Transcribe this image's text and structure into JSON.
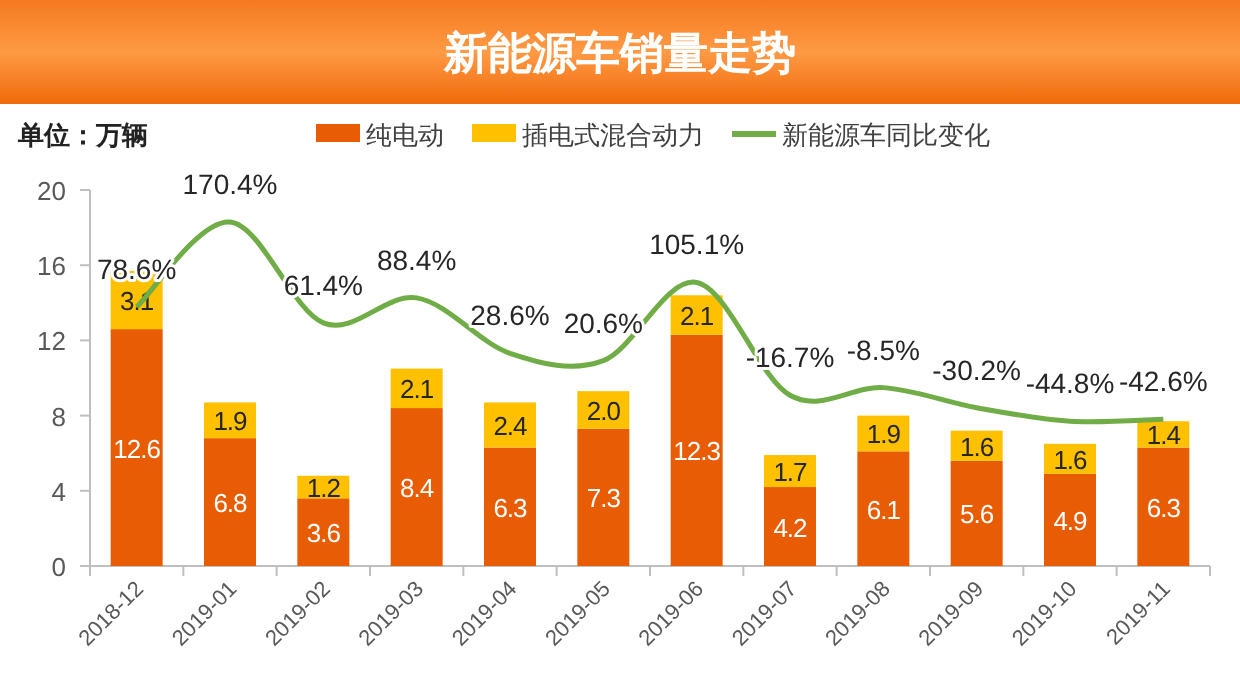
{
  "chart_data": {
    "type": "bar",
    "title": "新能源车销量走势",
    "ylabel": "单位：万辆",
    "stacked": true,
    "categories": [
      "2018-12",
      "2019-01",
      "2019-02",
      "2019-03",
      "2019-04",
      "2019-05",
      "2019-06",
      "2019-07",
      "2019-08",
      "2019-09",
      "2019-10",
      "2019-11"
    ],
    "ylim": [
      0,
      20
    ],
    "yticks": [
      0,
      4,
      8,
      12,
      16,
      20
    ],
    "grid": false,
    "legend": "top",
    "series": [
      {
        "name": "纯电动",
        "color": "#e85d04",
        "values": [
          12.6,
          6.8,
          3.6,
          8.4,
          6.3,
          7.3,
          12.3,
          4.2,
          6.1,
          5.6,
          4.9,
          6.3
        ],
        "value_labels": [
          "12.6",
          "6.8",
          "3.6",
          "8.4",
          "6.3",
          "7.3",
          "12.3",
          "4.2",
          "6.1",
          "5.6",
          "4.9",
          "6.3"
        ]
      },
      {
        "name": "插电式混合动力",
        "color": "#ffc000",
        "values": [
          3.1,
          1.9,
          1.2,
          2.1,
          2.4,
          2.0,
          2.1,
          1.7,
          1.9,
          1.6,
          1.6,
          1.4
        ],
        "value_labels": [
          "3.1",
          "1.9",
          "1.2",
          "2.1",
          "2.4",
          "2.0",
          "2.1",
          "1.7",
          "1.9",
          "1.6",
          "1.6",
          "1.4"
        ]
      },
      {
        "name": "新能源车同比变化",
        "type": "line",
        "axis": "y2",
        "color": "#70ad47",
        "values": [
          78.6,
          170.4,
          61.4,
          88.4,
          28.6,
          20.6,
          105.1,
          -16.7,
          -8.5,
          -30.2,
          -44.8,
          -42.6
        ],
        "value_labels": [
          "78.6%",
          "170.4%",
          "61.4%",
          "88.4%",
          "28.6%",
          "20.6%",
          "105.1%",
          "-16.7%",
          "-8.5%",
          "-30.2%",
          "-44.8%",
          "-42.6%"
        ]
      }
    ]
  }
}
